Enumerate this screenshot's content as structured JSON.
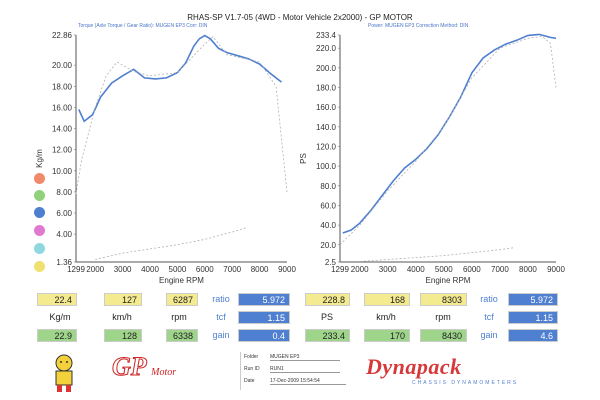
{
  "header": {
    "title": "RHAS-SP V1.7-05  (4WD - Motor Vehicle 2x2000) - GP MOTOR",
    "left_sub": "Torque (Axle Torque / Gear Ratio): MUGEN EP3    Corr: DIN",
    "right_sub": "Power: MUGEN EP3      Correction Method: DIN"
  },
  "chart_data": [
    {
      "type": "line",
      "ylabel": "Kg/m",
      "xlabel": "Engine RPM",
      "xlim": [
        1299,
        9000
      ],
      "ylim": [
        1.36,
        22.86
      ],
      "x_ticks": [
        "1299",
        "2000",
        "3000",
        "4000",
        "5000",
        "6000",
        "7000",
        "8000",
        "9000"
      ],
      "y_ticks": [
        "22.86",
        "20.00",
        "18.00",
        "16.00",
        "14.00",
        "12.00",
        "10.00",
        "8.00",
        "6.00",
        "4.00",
        "1.36"
      ],
      "series": [
        {
          "color": "#4f7fd0",
          "x": [
            1400,
            1600,
            1900,
            2200,
            2600,
            3000,
            3400,
            3800,
            4200,
            4600,
            5000,
            5300,
            5600,
            5800,
            6000,
            6200,
            6500,
            6800,
            7200,
            7600,
            8000,
            8400,
            8800
          ],
          "y": [
            15.8,
            14.7,
            15.3,
            17.0,
            18.3,
            19.0,
            19.6,
            18.8,
            18.7,
            18.8,
            19.3,
            20.2,
            21.8,
            22.5,
            22.8,
            22.5,
            21.6,
            21.2,
            20.9,
            20.6,
            20.1,
            19.2,
            18.4
          ]
        },
        {
          "color": "#b0b0b0",
          "x": [
            1300,
            1500,
            2000,
            2400,
            2800,
            3400,
            4000,
            5000,
            6000,
            6300,
            6800,
            7500,
            8000,
            8600,
            9000
          ],
          "y": [
            7.8,
            11.0,
            16.0,
            19.0,
            20.3,
            19.4,
            19.0,
            19.3,
            22.0,
            22.7,
            21.0,
            20.6,
            20.3,
            18.0,
            8.0
          ]
        },
        {
          "color": "#b0b0b0",
          "x": [
            2000,
            3000,
            4000,
            5000,
            6000,
            7000,
            7500
          ],
          "y": [
            1.6,
            2.2,
            2.6,
            3.0,
            3.5,
            4.2,
            4.6
          ]
        }
      ]
    },
    {
      "type": "line",
      "ylabel": "PS",
      "xlabel": "Engine RPM",
      "xlim": [
        1299,
        9000
      ],
      "ylim": [
        2.5,
        233.4
      ],
      "x_ticks": [
        "1299",
        "2000",
        "3000",
        "4000",
        "5000",
        "6000",
        "7000",
        "8000",
        "9000"
      ],
      "y_ticks": [
        "233.4",
        "220.0",
        "200.0",
        "180.0",
        "160.0",
        "140.0",
        "120.0",
        "100.0",
        "80.0",
        "60.0",
        "40.0",
        "20.0",
        "2.5"
      ],
      "series": [
        {
          "color": "#4f7fd0",
          "x": [
            1400,
            1700,
            2000,
            2400,
            2800,
            3200,
            3600,
            4000,
            4400,
            4800,
            5200,
            5600,
            6000,
            6400,
            6800,
            7200,
            7600,
            8000,
            8400,
            8800,
            9000
          ],
          "y": [
            32,
            35,
            42,
            55,
            70,
            85,
            98,
            107,
            118,
            132,
            150,
            170,
            195,
            210,
            218,
            224,
            228,
            233,
            234,
            231,
            230
          ]
        },
        {
          "color": "#b0b0b0",
          "x": [
            1300,
            2000,
            3000,
            4000,
            5000,
            6000,
            7000,
            8000,
            8500,
            8800,
            9000
          ],
          "y": [
            20,
            40,
            75,
            105,
            140,
            190,
            220,
            230,
            232,
            225,
            180
          ]
        },
        {
          "color": "#b0b0b0",
          "x": [
            2000,
            3000,
            4000,
            5000,
            6000,
            7000,
            7500
          ],
          "y": [
            3,
            5,
            7,
            9,
            12,
            15,
            17
          ]
        }
      ]
    }
  ],
  "legend_dot_colors": [
    "#f08a6a",
    "#8fd27a",
    "#4f7fd0",
    "#e07ad0",
    "#8fd8e0",
    "#f0e070"
  ],
  "table": {
    "row1": [
      "22.4",
      "127",
      "6287",
      "5.972",
      "228.8",
      "168",
      "8303",
      "5.972"
    ],
    "labels": [
      "Kg/m",
      "km/h",
      "rpm",
      "PS",
      "km/h",
      "rpm"
    ],
    "row3": [
      "22.9",
      "128",
      "6338",
      "0.4",
      "233.4",
      "170",
      "8430",
      "4.6"
    ],
    "mid_values": [
      "1.15",
      "1.15"
    ],
    "blue_labels": [
      "ratio",
      "tcf",
      "gain",
      "ratio",
      "tcf",
      "gain"
    ]
  },
  "footer": {
    "folder_label": "Folder",
    "folder_value": "MUGEN EP3",
    "run_label": "Run ID",
    "run_value": "RUN1",
    "date_label": "Date",
    "date_value": "17-Dec-2009  15:54:54",
    "gp_logo": "GP",
    "gp_logo_small": "Motor",
    "dyna_logo": "Dynapack",
    "dyna_sub": "CHASSIS DYNAMOMETERS"
  }
}
